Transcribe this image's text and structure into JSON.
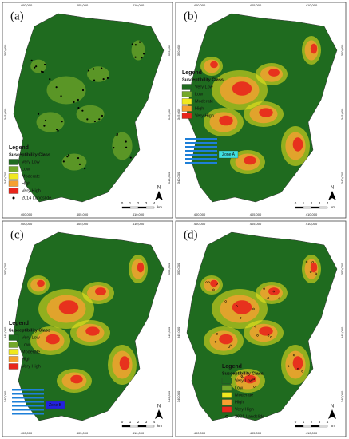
{
  "panels": [
    {
      "label": "(a)",
      "extra": "2014 Landslide"
    },
    {
      "label": "(b)",
      "zone": "Zone A"
    },
    {
      "label": "(c)",
      "zone": "Zone B"
    },
    {
      "label": "(d)",
      "extra": "2021 Landslide"
    }
  ],
  "legend": {
    "title": "Legend",
    "subtitle": "Susceptibility Class",
    "classes": [
      {
        "name": "Very Low",
        "color": "#1f6b1f"
      },
      {
        "name": "Low",
        "color": "#74a82a"
      },
      {
        "name": "Moderate",
        "color": "#f0e81e"
      },
      {
        "name": "High",
        "color": "#f5a030"
      },
      {
        "name": "Very High",
        "color": "#e8261c"
      }
    ]
  },
  "scale": {
    "ticks": [
      "0",
      "1",
      "2",
      "3",
      "4"
    ],
    "unit": "km"
  },
  "north": "N",
  "x_coords": [
    "400,000",
    "405,000",
    "410,000"
  ],
  "y_coords": [
    "350,000",
    "345,000",
    "340,000"
  ]
}
